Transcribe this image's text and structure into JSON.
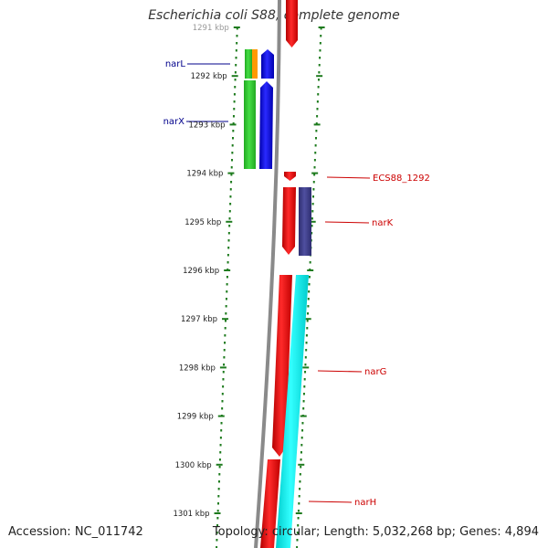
{
  "title": "Escherichia coli S88, complete genome",
  "accession": "Accession: NC_011742",
  "summary": "Topology: circular; Length: 5,032,268 bp; Genes: 4,894",
  "ruler": {
    "unit": "kbp",
    "ticks": [
      "1291 kbp",
      "1292 kbp",
      "1293 kbp",
      "1294 kbp",
      "1295 kbp",
      "1296 kbp",
      "1297 kbp",
      "1298 kbp",
      "1299 kbp",
      "1300 kbp",
      "1301 kbp"
    ]
  },
  "genes_left": [
    {
      "name": "narL",
      "color": "#00008b"
    },
    {
      "name": "narX",
      "color": "#00008b"
    }
  ],
  "genes_right": [
    {
      "name": "ECS88_1292",
      "color": "#cc0000"
    },
    {
      "name": "narK",
      "color": "#cc0000"
    },
    {
      "name": "narG",
      "color": "#cc0000"
    },
    {
      "name": "narH",
      "color": "#cc0000"
    }
  ],
  "colors": {
    "tick_dots": "#1e7b1e",
    "backbone": "#888888",
    "gene_red": "#ff0000",
    "gene_blue": "#0000ff",
    "gene_green": "#33cc33",
    "gene_orange": "#ff9900",
    "gene_purple": "#3f3f8f",
    "gene_cyan": "#00ffff"
  }
}
